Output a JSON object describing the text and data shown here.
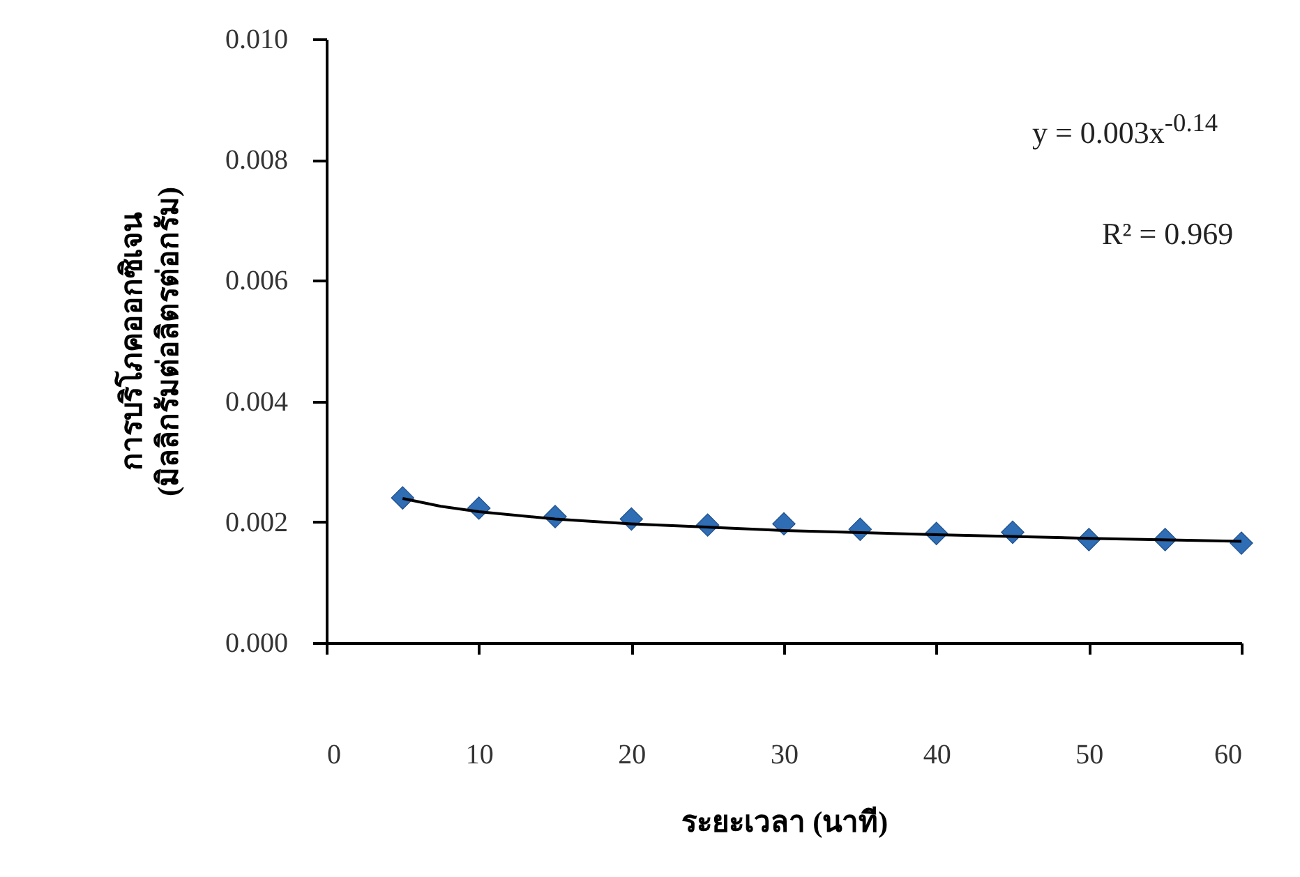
{
  "chart_data": {
    "type": "scatter",
    "xlabel": "ระยะเวลา (นาที)",
    "ylabel": "การบริโภคออกซิเจน\n(มิลลิกรัมต่อลิตรต่อกรัม)",
    "x": [
      5,
      10,
      15,
      20,
      25,
      30,
      35,
      40,
      45,
      50,
      55,
      60
    ],
    "series": [
      {
        "color": "#2f6db5",
        "marker": "diamond",
        "values": [
          0.0024,
          0.00223,
          0.00209,
          0.00205,
          0.00195,
          0.00197,
          0.00188,
          0.00181,
          0.00183,
          0.00171,
          0.00171,
          0.00165
        ]
      },
      {
        "type": "line",
        "color": "#000000",
        "line_style": "solid",
        "x": [
          5,
          7.5,
          10,
          15,
          20,
          30,
          40,
          50,
          60
        ],
        "values": [
          0.00239,
          0.00226,
          0.00217,
          0.00205,
          0.00197,
          0.00186,
          0.00179,
          0.00173,
          0.00168
        ]
      }
    ],
    "xlim": [
      0,
      60
    ],
    "xticks": [
      0,
      10,
      20,
      30,
      40,
      50,
      60
    ],
    "ylim": [
      0,
      0.01
    ],
    "yticks": [
      {
        "value": 0,
        "label": "0.000"
      },
      {
        "value": 0.002,
        "label": "0.002"
      },
      {
        "value": 0.004,
        "label": "0.004"
      },
      {
        "value": 0.006,
        "label": "0.006"
      },
      {
        "value": 0.008,
        "label": "0.008"
      },
      {
        "value": 0.01,
        "label": "0.010"
      }
    ],
    "annotations": [
      "y = 0.003x$^{-0.14}$",
      "R² = 0.969"
    ],
    "grid": false
  }
}
